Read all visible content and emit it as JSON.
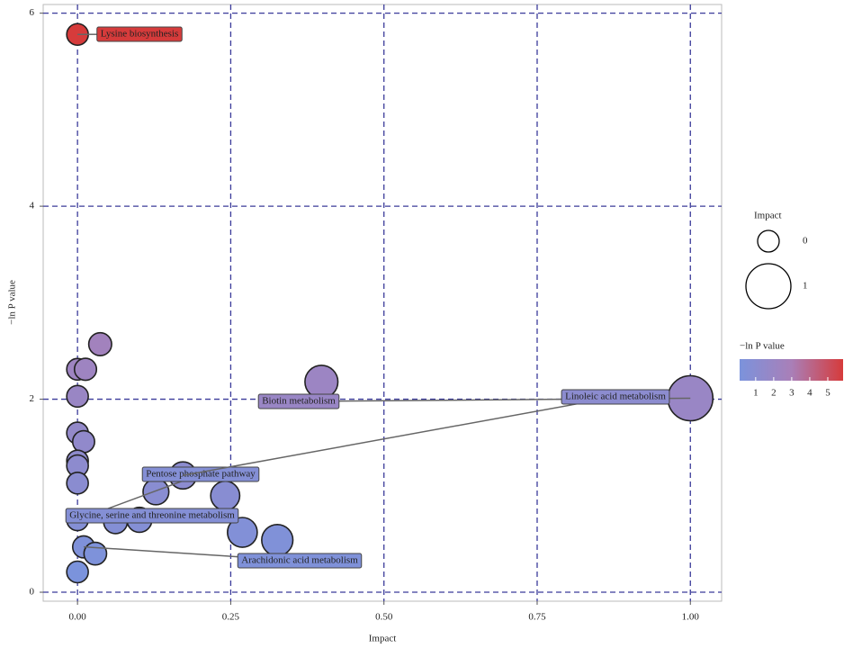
{
  "chart_data": {
    "type": "scatter",
    "x_label": "Impact",
    "y_label": "−ln P value",
    "x": [
      0,
      0.037,
      0,
      0.013,
      0,
      0,
      0.01,
      0,
      0,
      0,
      0.398,
      1.0,
      0.172,
      0.128,
      0.241,
      0,
      0.062,
      0.101,
      0.269,
      0.326,
      0.01,
      0.029,
      0
    ],
    "values": [
      5.78,
      2.57,
      2.31,
      2.31,
      2.03,
      1.65,
      1.56,
      1.36,
      1.31,
      1.13,
      2.18,
      2.01,
      1.21,
      1.04,
      1.0,
      0.75,
      0.73,
      0.75,
      0.62,
      0.54,
      0.47,
      0.4,
      0.21
    ],
    "xlim": [
      -0.056,
      1.051
    ],
    "ylim": [
      -0.093,
      6.09
    ],
    "xticks": [
      {
        "value": 0,
        "label": "0.00"
      },
      {
        "value": 0.25,
        "label": "0.25"
      },
      {
        "value": 0.5,
        "label": "0.50"
      },
      {
        "value": 0.75,
        "label": "0.75"
      },
      {
        "value": 1,
        "label": "1.00"
      }
    ],
    "yticks": [
      0,
      2,
      4,
      6
    ],
    "grid": true,
    "grid_color": "#3b3b9a",
    "colorscale": [
      "#7b93dc",
      "#a97fb8",
      "#d63b3b"
    ],
    "size_legend_title": "Impact",
    "size_legend_values": [
      0,
      1
    ],
    "color_legend_title": "−ln P value",
    "color_legend_ticks": [
      1,
      2,
      3,
      4,
      5
    ],
    "annotations": [
      "Lysine biosynthesis",
      "Pentose phosphate pathway",
      "Glycine, serine and threonine metabolism",
      "Biotin metabolism",
      "Linoleic acid metabolism",
      "Arachidonic acid metabolism"
    ]
  }
}
